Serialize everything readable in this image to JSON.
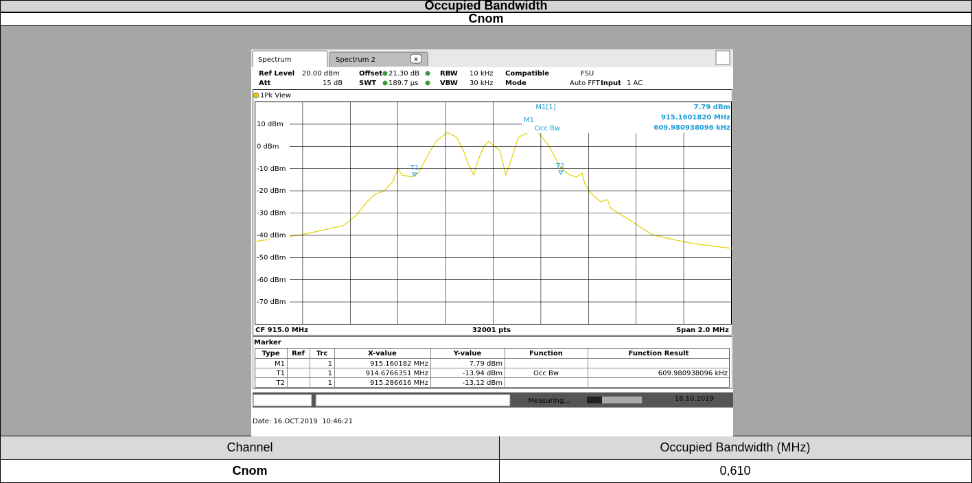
{
  "header": {
    "title": "Occupied Bandwidth",
    "subtitle": "Cnom"
  },
  "screen": {
    "tabs": [
      "Spectrum",
      "Spectrum 2"
    ],
    "settings": [
      "Ref Level",
      "20.00 dBm",
      "Offset",
      "21.30 dB",
      "RBW",
      "10 kHz",
      "Compatible",
      "FSU",
      "Att",
      "15 dB",
      "SWT",
      "189.7 µs",
      "VBW",
      "30 kHz",
      "Mode",
      "Auto FFT",
      "Input",
      "1 AC"
    ],
    "view": "1Pk View",
    "y_labels": [
      "10 dBm",
      "0 dBm",
      "-10 dBm",
      "-20 dBm",
      "-30 dBm",
      "-40 dBm",
      "-50 dBm",
      "-60 dBm",
      "-70 dBm"
    ],
    "marker_info": {
      "name": "M1[1]",
      "level": "7.79 dBm",
      "freq": "915.1601820 MHz",
      "bw": "609.980938096 kHz"
    },
    "markers": {
      "m1": "M1",
      "occ": "Occ Bw",
      "t1": "T1",
      "t2": "T2"
    },
    "footer": {
      "cf": "CF 915.0 MHz",
      "pts": "32001 pts",
      "span": "Span 2.0 MHz"
    },
    "marker_table": {
      "title": "Marker",
      "header": [
        "Type",
        "Ref",
        "Trc",
        "X-value",
        "Y-value",
        "Function",
        "Function Result"
      ],
      "rows": [
        [
          "M1",
          "",
          "1",
          "915.160182 MHz",
          "7.79 dBm",
          "",
          ""
        ],
        [
          "T1",
          "",
          "1",
          "914.6766351 MHz",
          "-13.94 dBm",
          "Occ Bw",
          "609.980938096 kHz"
        ],
        [
          "T2",
          "",
          "1",
          "915.286616 MHz",
          "-13.12 dBm",
          "",
          ""
        ]
      ]
    },
    "status": {
      "measuring": "Measuring...",
      "date": "16.10.2019"
    },
    "date": "Date: 16.OCT.2019  10:46:21"
  },
  "table": {
    "header": [
      "Channel",
      "Occupied Bandwidth (MHz)"
    ],
    "rows": [
      [
        "Cnom",
        "0,610"
      ]
    ]
  }
}
